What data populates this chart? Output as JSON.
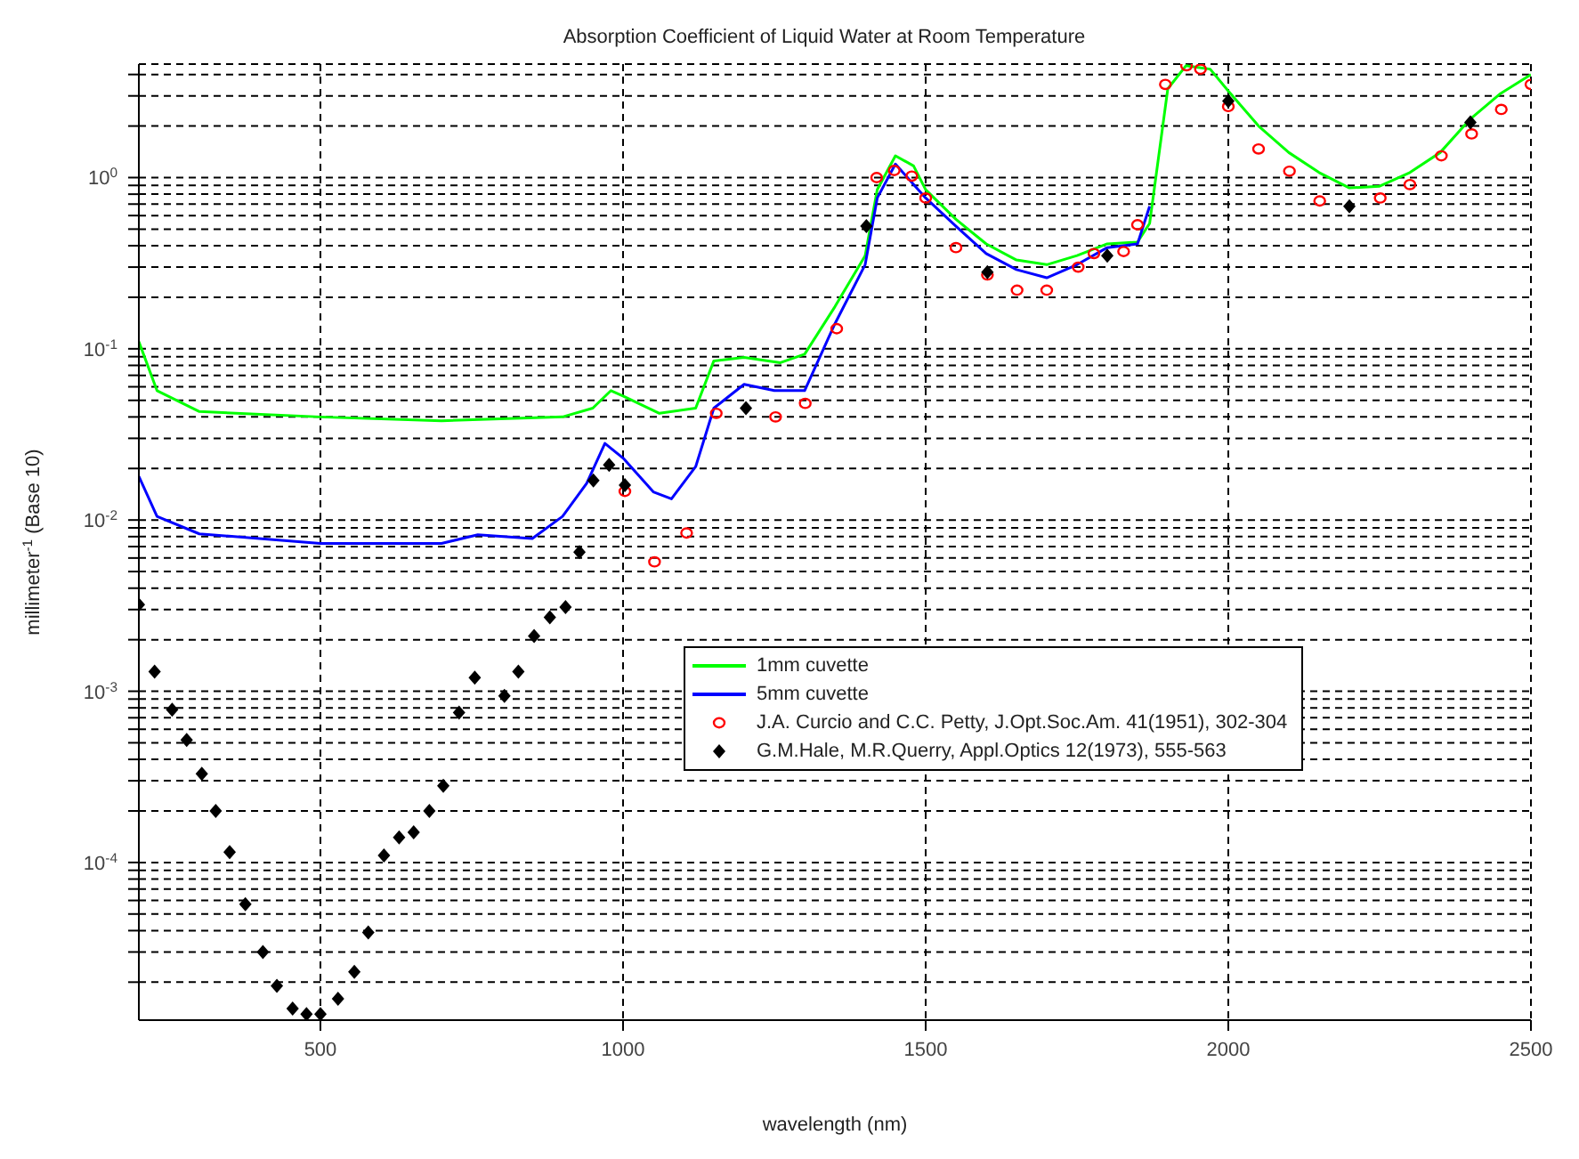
{
  "chart_data": {
    "type": "line",
    "title": "Absorption Coefficient of Liquid Water at Room Temperature",
    "xlabel": "wavelength (nm)",
    "ylabel": "millimeter$^{-1}$ (Base 10)",
    "log": "y",
    "grid": true,
    "legend": "right",
    "xlim": [
      200,
      2500
    ],
    "xticks": [
      500,
      1000,
      1500,
      2000,
      2500
    ],
    "ylim": [
      1.2e-05,
      4.6
    ],
    "yticks": [
      {
        "value": 2e-05,
        "label": null
      },
      {
        "value": 3e-05,
        "label": null
      },
      {
        "value": 4e-05,
        "label": null
      },
      {
        "value": 5e-05,
        "label": null
      },
      {
        "value": 6e-05,
        "label": null
      },
      {
        "value": 7e-05,
        "label": null
      },
      {
        "value": 8e-05,
        "label": null
      },
      {
        "value": 9e-05,
        "label": null
      },
      {
        "value": 0.0001,
        "label": "10$^{-4}$"
      },
      {
        "value": 0.0002,
        "label": null
      },
      {
        "value": 0.0003,
        "label": null
      },
      {
        "value": 0.0004,
        "label": null
      },
      {
        "value": 0.0005,
        "label": null
      },
      {
        "value": 0.0006,
        "label": null
      },
      {
        "value": 0.0007,
        "label": null
      },
      {
        "value": 0.0008,
        "label": null
      },
      {
        "value": 0.0009,
        "label": null
      },
      {
        "value": 0.001,
        "label": "10$^{-3}$"
      },
      {
        "value": 0.002,
        "label": null
      },
      {
        "value": 0.003,
        "label": null
      },
      {
        "value": 0.004,
        "label": null
      },
      {
        "value": 0.005,
        "label": null
      },
      {
        "value": 0.006,
        "label": null
      },
      {
        "value": 0.007,
        "label": null
      },
      {
        "value": 0.008,
        "label": null
      },
      {
        "value": 0.009,
        "label": null
      },
      {
        "value": 0.01,
        "label": "10$^{-2}$"
      },
      {
        "value": 0.02,
        "label": null
      },
      {
        "value": 0.03,
        "label": null
      },
      {
        "value": 0.04,
        "label": null
      },
      {
        "value": 0.05,
        "label": null
      },
      {
        "value": 0.06,
        "label": null
      },
      {
        "value": 0.07,
        "label": null
      },
      {
        "value": 0.08,
        "label": null
      },
      {
        "value": 0.09,
        "label": null
      },
      {
        "value": 0.1,
        "label": "10$^{-1}$"
      },
      {
        "value": 0.2,
        "label": null
      },
      {
        "value": 0.3,
        "label": null
      },
      {
        "value": 0.4,
        "label": null
      },
      {
        "value": 0.5,
        "label": null
      },
      {
        "value": 0.6,
        "label": null
      },
      {
        "value": 0.7,
        "label": null
      },
      {
        "value": 0.8,
        "label": null
      },
      {
        "value": 0.9,
        "label": null
      },
      {
        "value": 1,
        "label": "10$^{0}$"
      },
      {
        "value": 2,
        "label": null
      },
      {
        "value": 3,
        "label": null
      },
      {
        "value": 4,
        "label": null
      }
    ],
    "series": [
      {
        "name": "1mm cuvette",
        "marker": "none",
        "color": "#00ff00",
        "x": [
          200,
          230,
          300,
          500,
          700,
          900,
          950,
          980,
          1000,
          1060,
          1120,
          1150,
          1200,
          1260,
          1300,
          1350,
          1400,
          1420,
          1450,
          1480,
          1500,
          1550,
          1600,
          1650,
          1700,
          1750,
          1800,
          1850,
          1870,
          1900,
          1930,
          1950,
          1970,
          2000,
          2050,
          2100,
          2150,
          2200,
          2250,
          2300,
          2350,
          2400,
          2450,
          2500
        ],
        "values": [
          0.11,
          0.057,
          0.043,
          0.04,
          0.038,
          0.04,
          0.045,
          0.057,
          0.053,
          0.042,
          0.045,
          0.085,
          0.089,
          0.083,
          0.093,
          0.176,
          0.35,
          0.85,
          1.34,
          1.17,
          0.85,
          0.57,
          0.41,
          0.33,
          0.31,
          0.35,
          0.41,
          0.42,
          0.54,
          3.3,
          4.5,
          4.4,
          4.3,
          3.2,
          2.0,
          1.4,
          1.07,
          0.87,
          0.89,
          1.07,
          1.4,
          2.2,
          3.1,
          4.0
        ]
      },
      {
        "name": "5mm cuvette",
        "marker": "none",
        "color": "#0000ff",
        "x": [
          200,
          230,
          300,
          500,
          700,
          760,
          850,
          900,
          940,
          970,
          1000,
          1050,
          1080,
          1120,
          1150,
          1200,
          1250,
          1300,
          1350,
          1400,
          1420,
          1450,
          1500,
          1550,
          1600,
          1650,
          1700,
          1750,
          1800,
          1850,
          1870
        ],
        "values": [
          0.018,
          0.0105,
          0.0083,
          0.0073,
          0.0073,
          0.0082,
          0.0078,
          0.0105,
          0.0164,
          0.028,
          0.023,
          0.0146,
          0.0133,
          0.0205,
          0.045,
          0.062,
          0.057,
          0.057,
          0.14,
          0.31,
          0.76,
          1.2,
          0.76,
          0.52,
          0.36,
          0.29,
          0.26,
          0.31,
          0.39,
          0.41,
          0.68
        ]
      },
      {
        "name": "J.A. Curcio and C.C. Petty, J.Opt.Soc.Am. 41(1951), 302-304",
        "type": "scatter",
        "marker": "circle",
        "color": "#ff0000",
        "x": [
          1003,
          1052,
          1105,
          1154,
          1252,
          1301,
          1353,
          1419,
          1448,
          1477,
          1500,
          1550,
          1602,
          1651,
          1700,
          1752,
          1778,
          1827,
          1850,
          1896,
          1931,
          1954,
          2000,
          2050,
          2101,
          2151,
          2251,
          2300,
          2352,
          2402,
          2451,
          2500
        ],
        "values": [
          0.0147,
          0.0057,
          0.0084,
          0.042,
          0.04,
          0.048,
          0.131,
          1.0,
          1.1,
          1.02,
          0.76,
          0.39,
          0.27,
          0.22,
          0.22,
          0.3,
          0.36,
          0.37,
          0.53,
          3.5,
          4.5,
          4.3,
          2.6,
          1.47,
          1.09,
          0.73,
          0.76,
          0.91,
          1.34,
          1.8,
          2.5,
          3.5
        ]
      },
      {
        "name": "G.M.Hale, M.R.Querry, Appl.Optics 12(1973), 555-563",
        "type": "scatter",
        "marker": "diamond",
        "color": "#000000",
        "x": [
          200,
          226,
          255,
          279,
          304,
          327,
          350,
          376,
          405,
          428,
          454,
          477,
          500,
          529,
          556,
          579,
          605,
          630,
          654,
          680,
          703,
          729,
          755,
          804,
          827,
          853,
          879,
          905,
          928,
          951,
          977,
          1003,
          1203,
          1402,
          1602,
          1800,
          2000,
          2200,
          2400
        ],
        "values": [
          0.0032,
          0.0013,
          0.00078,
          0.00052,
          0.00033,
          0.0002,
          0.000115,
          5.7e-05,
          3e-05,
          1.9e-05,
          1.4e-05,
          1.3e-05,
          1.3e-05,
          1.6e-05,
          2.3e-05,
          3.9e-05,
          0.00011,
          0.00014,
          0.00015,
          0.0002,
          0.00028,
          0.00075,
          0.0012,
          0.00094,
          0.0013,
          0.0021,
          0.0027,
          0.0031,
          0.0065,
          0.017,
          0.021,
          0.016,
          0.045,
          0.52,
          0.28,
          0.35,
          2.8,
          0.68,
          2.1
        ]
      }
    ]
  }
}
